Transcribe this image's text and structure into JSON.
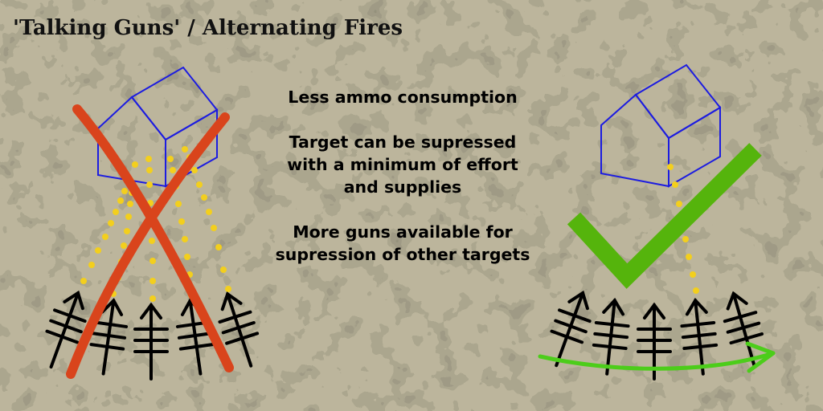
{
  "title": "'Talking Guns' / Alternating Fires",
  "points": [
    "Less ammo consumption",
    "Target can be supressed with a minimum of effort and supplies",
    "More guns available for supression of other targets"
  ],
  "colors": {
    "building": "#1c1ce0",
    "tracer": "#f3cf1d",
    "cross": "#d9441c",
    "check": "#55b40c",
    "arrow": "#4ccd1a",
    "gun": "#000000",
    "background": "#b9b49c"
  }
}
